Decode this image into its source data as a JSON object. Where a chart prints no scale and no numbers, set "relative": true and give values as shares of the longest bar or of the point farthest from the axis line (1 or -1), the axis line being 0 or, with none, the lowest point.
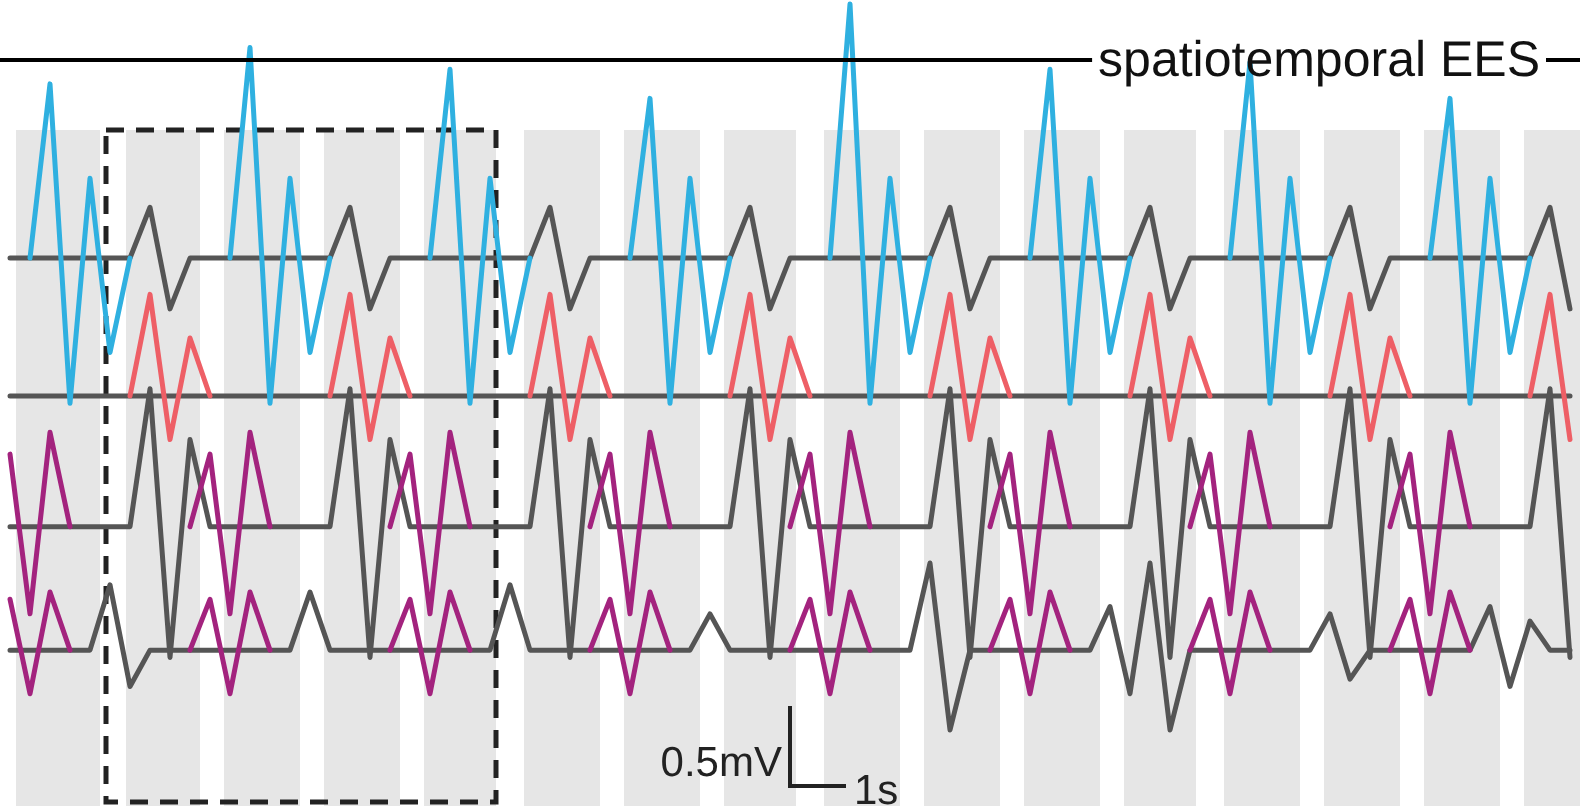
{
  "chart_data": {
    "type": "line",
    "relative": true,
    "tick_labels": false,
    "categories": [
      null,
      null,
      null,
      null,
      null,
      null,
      null,
      null,
      null,
      null,
      null,
      null,
      null,
      null,
      null,
      null,
      null,
      null,
      null,
      null,
      null,
      null,
      null,
      null,
      null,
      null,
      null,
      null,
      null,
      null,
      null,
      null,
      null,
      null,
      null,
      null,
      null,
      null,
      null,
      null,
      null,
      null,
      null,
      null,
      null,
      null,
      null,
      null,
      null,
      null,
      null,
      null,
      null,
      null,
      null,
      null,
      null,
      null,
      null,
      null,
      null,
      null,
      null,
      null,
      null,
      null,
      null,
      null,
      null,
      null,
      null,
      null,
      null,
      null,
      null,
      null,
      null,
      null,
      null
    ],
    "annotations": [
      "spatiotemporal EES",
      "0.5mV",
      "1s"
    ],
    "series": [
      {
        "color": "#555555",
        "values": [
          0.65,
          0.65,
          0.65,
          0.65,
          0.65,
          0.65,
          0.65,
          0.72,
          0.58,
          0.65,
          0.65,
          0.65,
          0.65,
          0.65,
          0.65,
          0.65,
          0.65,
          0.72,
          0.58,
          0.65,
          0.65,
          0.65,
          0.65,
          0.65,
          0.65,
          0.65,
          0.65,
          0.72,
          0.58,
          0.65,
          0.65,
          0.65,
          0.65,
          0.65,
          0.65,
          0.65,
          0.65,
          0.72,
          0.58,
          0.65,
          0.65,
          0.65,
          0.65,
          0.65,
          0.65,
          0.65,
          0.65,
          0.72,
          0.58,
          0.65,
          0.65,
          0.65,
          0.65,
          0.65,
          0.65,
          0.65,
          0.65,
          0.72,
          0.58,
          0.65,
          0.65,
          0.65,
          0.65,
          0.65,
          0.65,
          0.65,
          0.65,
          0.72,
          0.58,
          0.65,
          0.65,
          0.65,
          0.65,
          0.65,
          0.65,
          0.65,
          0.65,
          0.72,
          0.58
        ]
      },
      {
        "color": "#555555",
        "values": [
          0.46,
          0.46,
          0.46,
          0.46,
          0.46,
          0.46,
          0.46,
          0.46,
          0.46,
          0.46,
          0.46,
          0.46,
          0.46,
          0.46,
          0.46,
          0.46,
          0.46,
          0.46,
          0.46,
          0.46,
          0.46,
          0.46,
          0.46,
          0.46,
          0.46,
          0.46,
          0.46,
          0.46,
          0.46,
          0.46,
          0.46,
          0.46,
          0.46,
          0.46,
          0.46,
          0.46,
          0.46,
          0.46,
          0.46,
          0.46,
          0.46,
          0.46,
          0.46,
          0.46,
          0.46,
          0.46,
          0.46,
          0.46,
          0.46,
          0.46,
          0.46,
          0.46,
          0.46,
          0.46,
          0.46,
          0.46,
          0.46,
          0.46,
          0.46,
          0.46,
          0.46,
          0.46,
          0.46,
          0.46,
          0.46,
          0.46,
          0.46,
          0.46,
          0.46,
          0.46,
          0.46,
          0.46,
          0.46,
          0.46,
          0.46,
          0.46,
          0.46,
          0.46,
          0.46
        ]
      },
      {
        "color": "#555555",
        "values": [
          0.28,
          0.28,
          0.28,
          0.28,
          0.28,
          0.28,
          0.28,
          0.47,
          0.1,
          0.4,
          0.28,
          0.28,
          0.28,
          0.28,
          0.28,
          0.28,
          0.28,
          0.47,
          0.1,
          0.4,
          0.28,
          0.28,
          0.28,
          0.28,
          0.28,
          0.28,
          0.28,
          0.47,
          0.1,
          0.4,
          0.28,
          0.28,
          0.28,
          0.28,
          0.28,
          0.28,
          0.28,
          0.47,
          0.1,
          0.4,
          0.28,
          0.28,
          0.28,
          0.28,
          0.28,
          0.28,
          0.28,
          0.47,
          0.1,
          0.4,
          0.28,
          0.28,
          0.28,
          0.28,
          0.28,
          0.28,
          0.28,
          0.47,
          0.1,
          0.4,
          0.28,
          0.28,
          0.28,
          0.28,
          0.28,
          0.28,
          0.28,
          0.47,
          0.1,
          0.4,
          0.28,
          0.28,
          0.28,
          0.28,
          0.28,
          0.28,
          0.28,
          0.47,
          0.1
        ]
      },
      {
        "color": "#555555",
        "values": [
          0.11,
          0.11,
          0.11,
          0.11,
          0.11,
          0.2,
          0.06,
          0.11,
          0.11,
          0.11,
          0.11,
          0.11,
          0.11,
          0.11,
          0.11,
          0.19,
          0.11,
          0.11,
          0.11,
          0.11,
          0.11,
          0.11,
          0.11,
          0.11,
          0.11,
          0.2,
          0.11,
          0.11,
          0.11,
          0.11,
          0.11,
          0.11,
          0.11,
          0.11,
          0.11,
          0.16,
          0.11,
          0.11,
          0.11,
          0.11,
          0.11,
          0.11,
          0.11,
          0.11,
          0.11,
          0.11,
          0.23,
          0,
          0.11,
          0.11,
          0.11,
          0.11,
          0.11,
          0.11,
          0.11,
          0.17,
          0.05,
          0.23,
          0,
          0.11,
          0.11,
          0.11,
          0.11,
          0.11,
          0.11,
          0.11,
          0.16,
          0.07,
          0.11,
          0.11,
          0.11,
          0.11,
          0.11,
          0.11,
          0.17,
          0.06,
          0.15,
          0.11,
          0.11
        ]
      },
      {
        "color": "#2fb0e0",
        "values": [
          null,
          0.65,
          0.89,
          0.45,
          0.76,
          0.52,
          0.65,
          null,
          null,
          null,
          null,
          0.65,
          0.94,
          0.45,
          0.76,
          0.52,
          0.65,
          null,
          null,
          null,
          null,
          0.65,
          0.91,
          0.45,
          0.76,
          0.52,
          0.65,
          null,
          null,
          null,
          null,
          0.65,
          0.87,
          0.45,
          0.76,
          0.52,
          0.65,
          null,
          null,
          null,
          null,
          0.65,
          1,
          0.45,
          0.76,
          0.52,
          0.65,
          null,
          null,
          null,
          null,
          0.65,
          0.91,
          0.45,
          0.76,
          0.52,
          0.65,
          null,
          null,
          null,
          null,
          0.65,
          0.92,
          0.45,
          0.76,
          0.52,
          0.65,
          null,
          null,
          null,
          null,
          0.65,
          0.87,
          0.45,
          0.76,
          0.52,
          0.65,
          null,
          null
        ]
      },
      {
        "color": "#ee5f66",
        "values": [
          null,
          null,
          null,
          null,
          null,
          null,
          0.46,
          0.6,
          0.4,
          0.54,
          0.46,
          null,
          null,
          null,
          null,
          null,
          0.46,
          0.6,
          0.4,
          0.54,
          0.46,
          null,
          null,
          null,
          null,
          null,
          0.46,
          0.6,
          0.4,
          0.54,
          0.46,
          null,
          null,
          null,
          null,
          null,
          0.46,
          0.6,
          0.4,
          0.54,
          0.46,
          null,
          null,
          null,
          null,
          null,
          0.46,
          0.6,
          0.4,
          0.54,
          0.46,
          null,
          null,
          null,
          null,
          null,
          0.46,
          0.6,
          0.4,
          0.54,
          0.46,
          null,
          null,
          null,
          null,
          null,
          0.46,
          0.6,
          0.4,
          0.54,
          0.46,
          null,
          null,
          null,
          null,
          null,
          0.46,
          0.6,
          0.4
        ]
      },
      {
        "color": "#a3237e",
        "values": [
          0.38,
          0.16,
          0.41,
          0.28,
          null,
          null,
          null,
          null,
          null,
          0.28,
          0.38,
          0.16,
          0.41,
          0.28,
          null,
          null,
          null,
          null,
          null,
          0.28,
          0.38,
          0.16,
          0.41,
          0.28,
          null,
          null,
          null,
          null,
          null,
          0.28,
          0.38,
          0.16,
          0.41,
          0.28,
          null,
          null,
          null,
          null,
          null,
          0.28,
          0.38,
          0.16,
          0.41,
          0.28,
          null,
          null,
          null,
          null,
          null,
          0.28,
          0.38,
          0.16,
          0.41,
          0.28,
          null,
          null,
          null,
          null,
          null,
          0.28,
          0.38,
          0.16,
          0.41,
          0.28,
          null,
          null,
          null,
          null,
          null,
          0.28,
          0.38,
          0.16,
          0.41,
          0.28,
          null,
          null,
          null,
          null,
          null
        ]
      },
      {
        "color": "#a3237e",
        "values": [
          0.18,
          0.05,
          0.19,
          0.11,
          null,
          null,
          null,
          null,
          null,
          0.11,
          0.18,
          0.05,
          0.19,
          0.11,
          null,
          null,
          null,
          null,
          null,
          0.11,
          0.18,
          0.05,
          0.19,
          0.11,
          null,
          null,
          null,
          null,
          null,
          0.11,
          0.18,
          0.05,
          0.19,
          0.11,
          null,
          null,
          null,
          null,
          null,
          0.11,
          0.18,
          0.05,
          0.19,
          0.11,
          null,
          null,
          null,
          null,
          null,
          0.11,
          0.18,
          0.05,
          0.19,
          0.11,
          null,
          null,
          null,
          null,
          null,
          0.11,
          0.18,
          0.05,
          0.19,
          0.11,
          null,
          null,
          null,
          null,
          null,
          0.11,
          0.18,
          0.05,
          0.19,
          0.11,
          null,
          null,
          null,
          null,
          null
        ]
      }
    ]
  }
}
